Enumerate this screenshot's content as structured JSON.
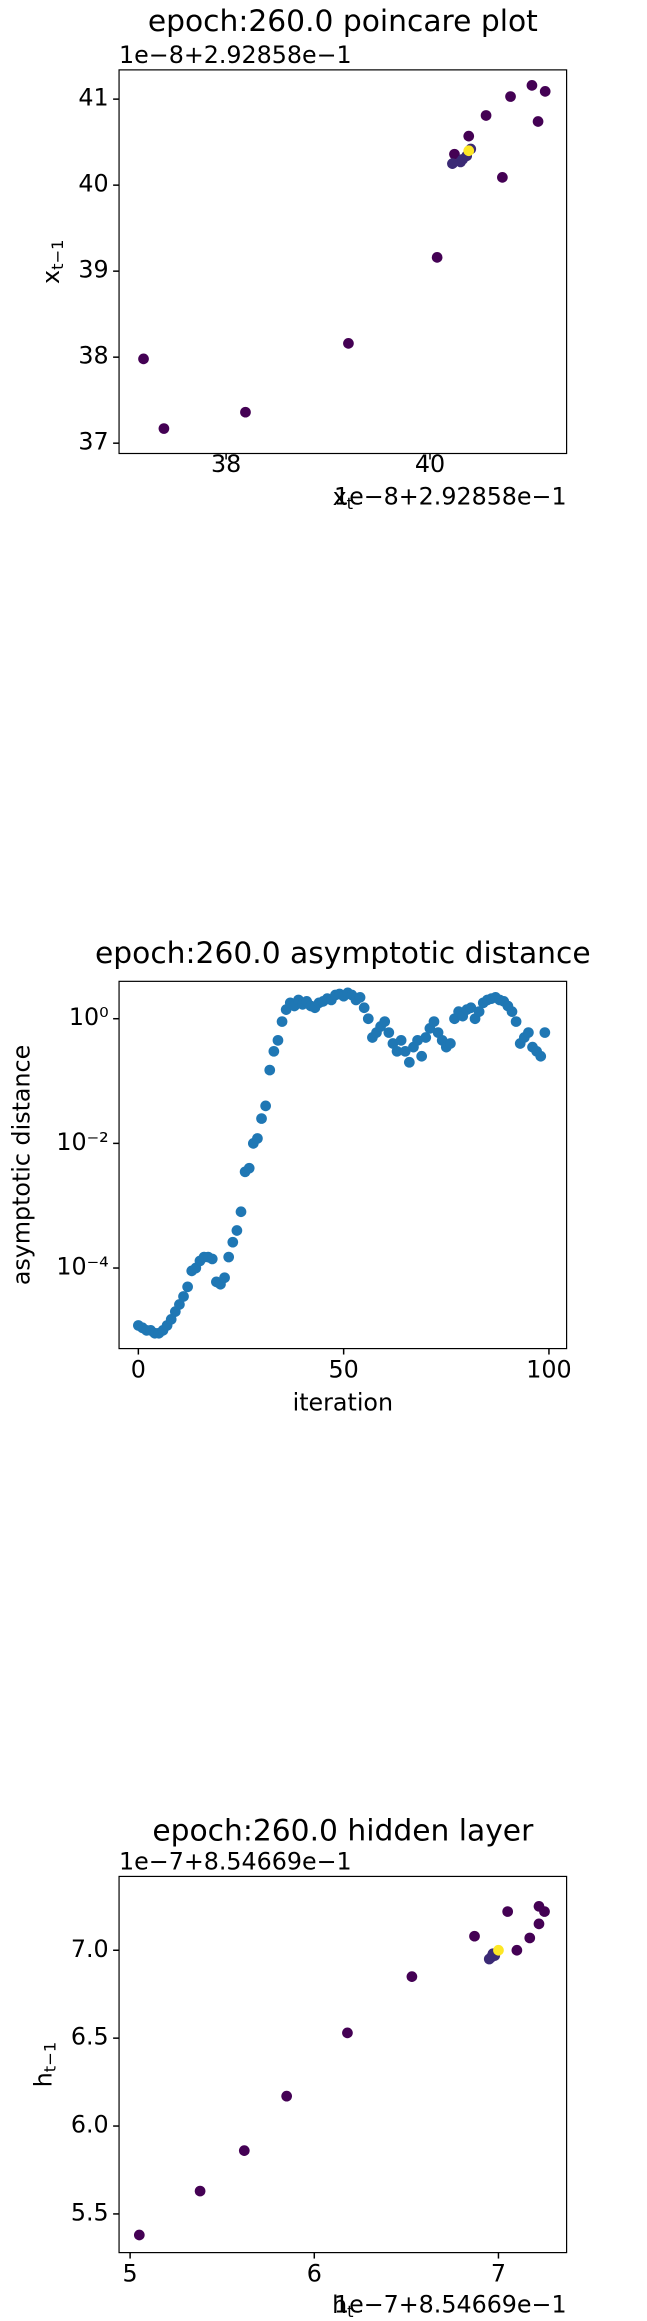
{
  "chart_data": [
    {
      "type": "scatter",
      "title": "epoch:260.0 poincare plot",
      "xlabel": "x",
      "xlabel_sub": "t",
      "ylabel": "x",
      "ylabel_sub": "t−1",
      "x_offset": "1e−8+2.92858e−1",
      "y_offset": "1e−8+2.92858e−1",
      "x": [
        37.19,
        37.39,
        38.19,
        39.2,
        40.07,
        40.24,
        40.22,
        40.3,
        40.38,
        40.55,
        40.71,
        40.79,
        41.0,
        41.06,
        41.13,
        40.32,
        40.36,
        40.4,
        40.38
      ],
      "y": [
        37.98,
        37.17,
        37.36,
        38.16,
        39.16,
        40.36,
        40.25,
        40.27,
        40.57,
        40.81,
        40.09,
        41.03,
        41.16,
        40.74,
        41.09,
        40.3,
        40.34,
        40.42,
        40.4
      ],
      "colors": [
        "#440154",
        "#440154",
        "#440154",
        "#440154",
        "#440154",
        "#440154",
        "#3b2a75",
        "#3b2a75",
        "#440154",
        "#440154",
        "#440154",
        "#440154",
        "#440154",
        "#440154",
        "#440154",
        "#3b2a75",
        "#3b2a75",
        "#3b2a75",
        "#fde725"
      ],
      "xlim": [
        36.95,
        41.34
      ],
      "ylim": [
        36.88,
        41.34
      ],
      "xticks": [
        38,
        40
      ],
      "yticks": [
        37,
        38,
        39,
        40,
        41
      ]
    },
    {
      "type": "scatter",
      "title": "epoch:260.0 asymptotic distance",
      "log_y": true,
      "xlabel": "iteration",
      "ylabel": "asymptotic distance",
      "color": "#1f77b4",
      "x": [
        0,
        1,
        2,
        3,
        4,
        5,
        6,
        7,
        8,
        9,
        10,
        11,
        12,
        13,
        14,
        15,
        16,
        17,
        18,
        19,
        20,
        21,
        22,
        23,
        24,
        25,
        26,
        27,
        28,
        29,
        30,
        31,
        32,
        33,
        34,
        35,
        36,
        37,
        38,
        39,
        40,
        41,
        42,
        43,
        44,
        45,
        46,
        47,
        48,
        49,
        50,
        51,
        52,
        53,
        54,
        55,
        56,
        57,
        58,
        59,
        60,
        61,
        62,
        63,
        64,
        65,
        66,
        67,
        68,
        69,
        70,
        71,
        72,
        73,
        74,
        75,
        76,
        77,
        78,
        79,
        80,
        81,
        82,
        83,
        84,
        85,
        86,
        87,
        88,
        89,
        90,
        91,
        92,
        93,
        94,
        95,
        96,
        97,
        98,
        99
      ],
      "values": [
        1.2e-05,
        1.1e-05,
        1e-05,
        1e-05,
        9e-06,
        9e-06,
        1e-05,
        1.2e-05,
        1.5e-05,
        2e-05,
        2.6e-05,
        3.5e-05,
        5e-05,
        9e-05,
        0.0001,
        0.00013,
        0.00015,
        0.00015,
        0.00014,
        6e-05,
        5.5e-05,
        7e-05,
        0.00015,
        0.00026,
        0.0004,
        0.0008,
        0.0035,
        0.004,
        0.01,
        0.012,
        0.025,
        0.04,
        0.15,
        0.3,
        0.45,
        0.9,
        1.4,
        1.8,
        1.6,
        2.0,
        1.7,
        1.9,
        1.6,
        1.5,
        1.8,
        1.9,
        2.1,
        2.0,
        2.4,
        2.5,
        2.3,
        2.6,
        2.4,
        2.0,
        2.2,
        1.5,
        1.0,
        0.5,
        0.6,
        0.75,
        0.9,
        0.6,
        0.4,
        0.3,
        0.45,
        0.3,
        0.2,
        0.35,
        0.45,
        0.25,
        0.5,
        0.7,
        0.9,
        0.6,
        0.45,
        0.35,
        0.4,
        1.0,
        1.3,
        1.1,
        1.4,
        1.5,
        1.0,
        1.3,
        1.8,
        2.0,
        2.1,
        2.2,
        2.0,
        1.9,
        1.6,
        1.3,
        0.9,
        0.4,
        0.5,
        0.6,
        0.35,
        0.3,
        0.25,
        0.6
      ],
      "xlim": [
        -4.7,
        104.3
      ],
      "ylim": [
        5.1e-06,
        3.98
      ],
      "xticks": [
        0,
        50,
        100
      ],
      "yticks": [
        {
          "value": 0.0001,
          "label": "10⁻⁴"
        },
        {
          "value": 0.01,
          "label": "10⁻²"
        },
        {
          "value": 1,
          "label": "10⁰"
        }
      ]
    },
    {
      "type": "scatter",
      "title": "epoch:260.0 hidden layer",
      "xlabel": "h",
      "xlabel_sub": "t",
      "ylabel": "h",
      "ylabel_sub": "t−1",
      "x_offset": "1e−7+8.54669e−1",
      "y_offset": "1e−7+8.54669e−1",
      "x": [
        5.05,
        5.38,
        5.62,
        5.85,
        6.18,
        6.53,
        6.87,
        7.05,
        7.1,
        7.17,
        7.22,
        7.22,
        7.25,
        6.95,
        6.97,
        6.98,
        6.96,
        7.0
      ],
      "y": [
        5.38,
        5.63,
        5.86,
        6.17,
        6.53,
        6.85,
        7.08,
        7.22,
        7.0,
        7.07,
        7.25,
        7.15,
        7.22,
        6.95,
        6.98,
        6.97,
        6.96,
        7.0
      ],
      "colors": [
        "#440154",
        "#440154",
        "#440154",
        "#440154",
        "#440154",
        "#440154",
        "#440154",
        "#440154",
        "#440154",
        "#440154",
        "#440154",
        "#440154",
        "#440154",
        "#3b2a75",
        "#3b2a75",
        "#3b2a75",
        "#3b2a75",
        "#fde725"
      ],
      "xlim": [
        4.94,
        7.37
      ],
      "ylim": [
        5.28,
        7.42
      ],
      "xticks": [
        5,
        6,
        7
      ],
      "yticks": [
        5.5,
        {
          "value": 6,
          "label": "6.0"
        },
        6.5,
        {
          "value": 7,
          "label": "7.0"
        }
      ]
    }
  ]
}
